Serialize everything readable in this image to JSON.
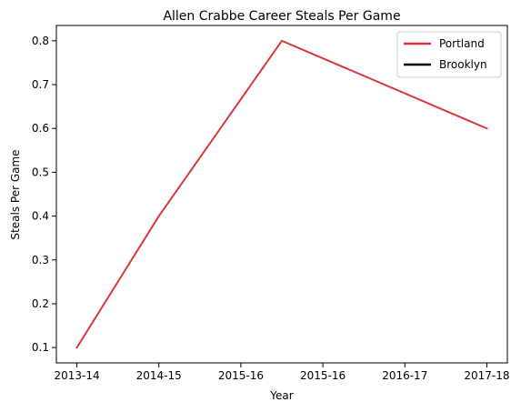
{
  "chart_data": {
    "type": "line",
    "title": "Allen Crabbe Career Steals Per Game",
    "xlabel": "Year",
    "ylabel": "Steals Per Game",
    "categories": [
      "2013-14",
      "2014-15",
      "2015-16",
      "2015-16",
      "2016-17",
      "2017-18"
    ],
    "ylim": [
      0.065,
      0.835
    ],
    "yticks": [
      0.1,
      0.2,
      0.3,
      0.4,
      0.5,
      0.6,
      0.7,
      0.8
    ],
    "ytick_labels": [
      "0.1",
      "0.2",
      "0.3",
      "0.4",
      "0.5",
      "0.6",
      "0.7",
      "0.8"
    ],
    "grid": false,
    "legend_position": "top-right",
    "series": [
      {
        "name": "Portland",
        "color": "#d9363e",
        "points": [
          {
            "x": 0,
            "y": 0.1
          },
          {
            "x": 1,
            "y": 0.4
          },
          {
            "x": 2.5,
            "y": 0.8
          },
          {
            "x": 5,
            "y": 0.6
          }
        ]
      },
      {
        "name": "Brooklyn",
        "color": "#000000",
        "points": []
      }
    ]
  }
}
